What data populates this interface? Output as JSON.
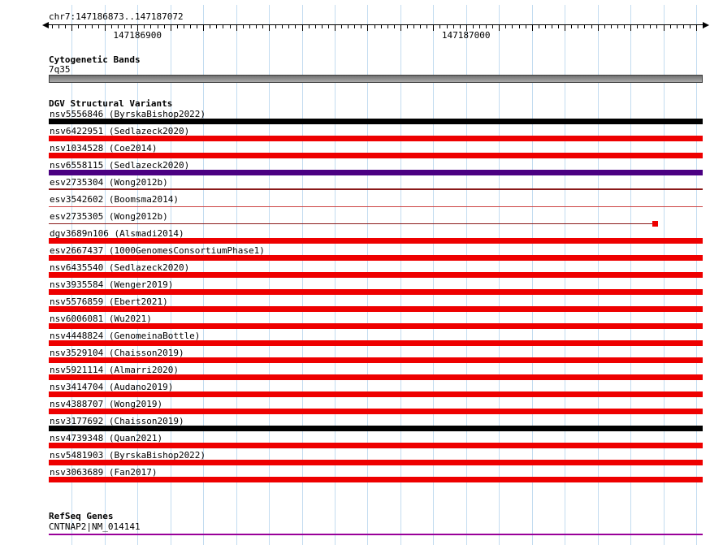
{
  "region": {
    "text": "chr7:147186873..147187072"
  },
  "ruler": {
    "start": 147186873,
    "end": 147187072,
    "grid_step": 10,
    "minor_tick_step": 2,
    "major_tick_step": 10,
    "labels": [
      {
        "text": "147186900",
        "bp": 147186900
      },
      {
        "text": "147187000",
        "bp": 147187000
      }
    ]
  },
  "colors": {
    "grid": "#c3dcf0",
    "variant_red": "#ee0000",
    "variant_black": "#000000",
    "variant_purple": "#4b0082",
    "thin_dark_red": "#8b1a1a",
    "thin_red": "#cc4444",
    "cytoband_gray": "#8f8f8f",
    "gene_purple": "#990099"
  },
  "cytobands": {
    "title": "Cytogenetic Bands",
    "band_label": "7q35"
  },
  "dgv": {
    "title": "DGV Structural Variants",
    "variants": [
      {
        "label": "nsv5556846 (ByrskaBishop2022)",
        "color": "#000000",
        "thickness": 7,
        "start": 0,
        "end": 1
      },
      {
        "label": "nsv6422951 (Sedlazeck2020)",
        "color": "#ee0000",
        "thickness": 7,
        "start": 0,
        "end": 1
      },
      {
        "label": "nsv1034528 (Coe2014)",
        "color": "#ee0000",
        "thickness": 7,
        "start": 0,
        "end": 1
      },
      {
        "label": "nsv6558115 (Sedlazeck2020)",
        "color": "#4b0082",
        "thickness": 7,
        "start": 0,
        "end": 1
      },
      {
        "label": "esv2735304 (Wong2012b)",
        "color": "#8b1a1a",
        "thickness": 2,
        "start": 0,
        "end": 1
      },
      {
        "label": "esv3542602 (Boomsma2014)",
        "color": "#cc4444",
        "thickness": 1,
        "start": 0,
        "end": 1
      },
      {
        "label": "esv2735305 (Wong2012b)",
        "color": "#8b1a1a",
        "thickness": 1,
        "start": 0,
        "end": 0.925,
        "marker": {
          "color": "#ee0000",
          "size": 7
        }
      },
      {
        "label": "dgv3689n106 (Alsmadi2014)",
        "color": "#ee0000",
        "thickness": 7,
        "start": 0,
        "end": 1
      },
      {
        "label": "esv2667437 (1000GenomesConsortiumPhase1)",
        "color": "#ee0000",
        "thickness": 7,
        "start": 0,
        "end": 1
      },
      {
        "label": "nsv6435540 (Sedlazeck2020)",
        "color": "#ee0000",
        "thickness": 7,
        "start": 0,
        "end": 1
      },
      {
        "label": "nsv3935584 (Wenger2019)",
        "color": "#ee0000",
        "thickness": 7,
        "start": 0,
        "end": 1
      },
      {
        "label": "nsv5576859 (Ebert2021)",
        "color": "#ee0000",
        "thickness": 7,
        "start": 0,
        "end": 1
      },
      {
        "label": "nsv6006081 (Wu2021)",
        "color": "#ee0000",
        "thickness": 7,
        "start": 0,
        "end": 1
      },
      {
        "label": "nsv4448824 (GenomeinaBottle)",
        "color": "#ee0000",
        "thickness": 7,
        "start": 0,
        "end": 1
      },
      {
        "label": "nsv3529104 (Chaisson2019)",
        "color": "#ee0000",
        "thickness": 7,
        "start": 0,
        "end": 1
      },
      {
        "label": "nsv5921114 (Almarri2020)",
        "color": "#ee0000",
        "thickness": 7,
        "start": 0,
        "end": 1
      },
      {
        "label": "nsv3414704 (Audano2019)",
        "color": "#ee0000",
        "thickness": 7,
        "start": 0,
        "end": 1
      },
      {
        "label": "nsv4388707 (Wong2019)",
        "color": "#ee0000",
        "thickness": 7,
        "start": 0,
        "end": 1
      },
      {
        "label": "nsv3177692 (Chaisson2019)",
        "color": "#000000",
        "thickness": 7,
        "start": 0,
        "end": 1
      },
      {
        "label": "nsv4739348 (Quan2021)",
        "color": "#ee0000",
        "thickness": 7,
        "start": 0,
        "end": 1
      },
      {
        "label": "nsv5481903 (ByrskaBishop2022)",
        "color": "#ee0000",
        "thickness": 7,
        "start": 0,
        "end": 1
      },
      {
        "label": "nsv3063689 (Fan2017)",
        "color": "#ee0000",
        "thickness": 7,
        "start": 0,
        "end": 1
      }
    ]
  },
  "refseq": {
    "title": "RefSeq Genes",
    "gene_label": "CNTNAP2|NM_014141"
  }
}
